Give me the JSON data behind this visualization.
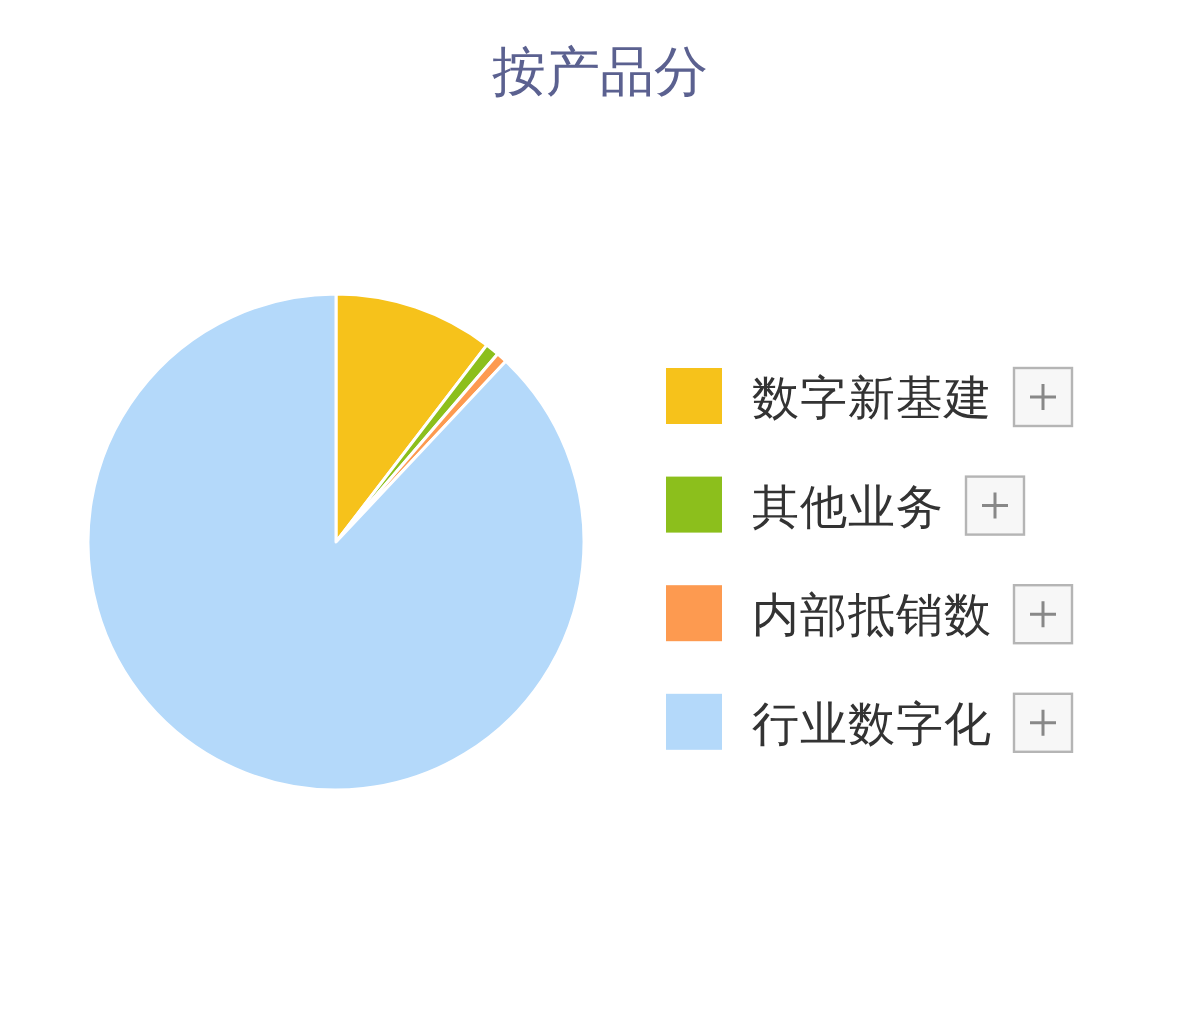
{
  "chart_data": {
    "type": "pie",
    "title": "按产品分",
    "categories": [
      "数字新基建",
      "其他业务",
      "内部抵销数",
      "行业数字化"
    ],
    "values": [
      10.4,
      0.9,
      0.7,
      88.0
    ],
    "colors": [
      "#f6c21b",
      "#8cbf1c",
      "#fd9a50",
      "#b4d9fa"
    ],
    "legend": "right"
  }
}
